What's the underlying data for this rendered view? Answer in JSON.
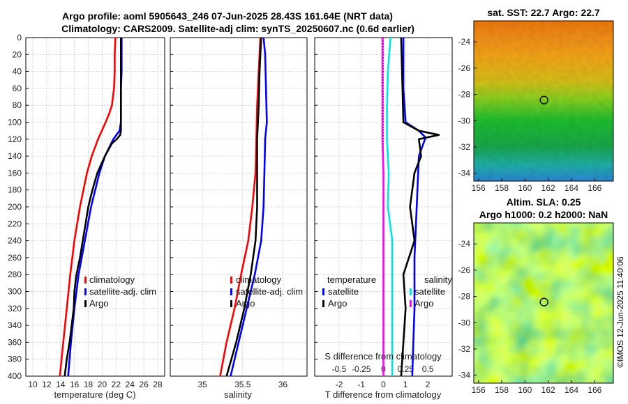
{
  "title_line1": "Argo profile: aoml 5905643_246 07-Jun-2025 28.43S 161.64E (NRT data)",
  "title_line2": "Climatology: CARS2009. Satellite-adj clim: synTS_20250607.nc (0.6d earlier)",
  "watermark": "©IMOS 12-Jun-2025 11:40:06",
  "colors": {
    "red": "#ff0000",
    "blue": "#0000ff",
    "black": "#000000",
    "cyan": "#00e5e5",
    "magenta": "#ff00ff"
  },
  "chart_data": [
    {
      "type": "line",
      "title": "",
      "xlabel": "temperature (deg C)",
      "ylabel": "",
      "xlim": [
        9,
        29
      ],
      "ylim": [
        400,
        0
      ],
      "xticks": [
        "10",
        "12",
        "14",
        "16",
        "18",
        "20",
        "22",
        "24",
        "26",
        "28"
      ],
      "yticks": [
        "0",
        "20",
        "40",
        "60",
        "80",
        "100",
        "120",
        "140",
        "160",
        "180",
        "200",
        "220",
        "240",
        "260",
        "280",
        "300",
        "320",
        "340",
        "360",
        "380",
        "400"
      ],
      "legend": [
        "climatology",
        "satellite-adj. clim",
        "Argo"
      ],
      "series": [
        {
          "name": "climatology",
          "color": "red",
          "depth": [
            0,
            20,
            40,
            60,
            80,
            90,
            100,
            120,
            140,
            160,
            200,
            240,
            280,
            320,
            360,
            400
          ],
          "values": [
            21.9,
            21.8,
            21.8,
            21.7,
            21.4,
            21.0,
            20.5,
            19.4,
            18.5,
            17.8,
            16.8,
            16.0,
            15.4,
            14.9,
            14.4,
            13.9
          ]
        },
        {
          "name": "satellite-adj. clim",
          "color": "blue",
          "depth": [
            0,
            20,
            40,
            60,
            80,
            100,
            110,
            120,
            140,
            160,
            200,
            240,
            280,
            320,
            360,
            400
          ],
          "values": [
            22.8,
            22.8,
            22.8,
            22.7,
            22.7,
            22.7,
            22.5,
            21.6,
            20.4,
            19.6,
            18.4,
            17.5,
            16.6,
            16.0,
            15.5,
            15.1
          ]
        },
        {
          "name": "Argo",
          "color": "black",
          "depth": [
            0,
            60,
            100,
            110,
            115,
            120,
            125,
            140,
            160,
            180,
            200,
            220,
            240,
            260,
            280,
            300,
            320,
            340,
            360,
            380,
            400
          ],
          "values": [
            22.7,
            22.7,
            22.7,
            22.7,
            22.6,
            22.1,
            21.4,
            20.4,
            19.3,
            18.6,
            18.0,
            17.6,
            17.2,
            16.8,
            16.3,
            16.0,
            15.9,
            15.6,
            15.3,
            14.9,
            14.6
          ]
        }
      ]
    },
    {
      "type": "line",
      "xlabel": "salinity",
      "xlim": [
        34.6,
        36.3
      ],
      "ylim": [
        400,
        0
      ],
      "xticks": [
        "35",
        "35.5",
        "36"
      ],
      "legend": [
        "climatology",
        "satellite-adj. clim",
        "Argo"
      ],
      "series": [
        {
          "name": "climatology",
          "color": "red",
          "depth": [
            0,
            40,
            80,
            120,
            160,
            200,
            240,
            280,
            320,
            360,
            400
          ],
          "values": [
            35.72,
            35.7,
            35.68,
            35.67,
            35.66,
            35.62,
            35.57,
            35.48,
            35.4,
            35.3,
            35.22
          ]
        },
        {
          "name": "satellite-adj. clim",
          "color": "blue",
          "depth": [
            0,
            20,
            60,
            100,
            120,
            160,
            200,
            240,
            280,
            320,
            360,
            400
          ],
          "values": [
            35.76,
            35.78,
            35.79,
            35.8,
            35.78,
            35.77,
            35.76,
            35.73,
            35.65,
            35.55,
            35.45,
            35.35
          ]
        },
        {
          "name": "Argo",
          "color": "black",
          "depth": [
            0,
            40,
            80,
            120,
            160,
            200,
            240,
            280,
            320,
            360,
            400
          ],
          "values": [
            35.73,
            35.71,
            35.7,
            35.68,
            35.68,
            35.68,
            35.66,
            35.6,
            35.52,
            35.42,
            35.3
          ]
        }
      ]
    },
    {
      "type": "line",
      "xlabel": "T difference from climatology",
      "xlabel_top": "S difference from climatology",
      "xlim": [
        -3.1,
        3.1
      ],
      "ylim": [
        400,
        0
      ],
      "xticks": [
        "-2",
        "-1",
        "0",
        "1",
        "2"
      ],
      "xticks_top": [
        "-0.5",
        "-0.25",
        "0",
        "0.25",
        "0.5"
      ],
      "legend_left": {
        "header": "temperature",
        "items": [
          "satellite",
          "Argo"
        ]
      },
      "legend_right": {
        "header": "salinity",
        "items": [
          "satellite",
          "Argo"
        ]
      },
      "series": [
        {
          "name": "T satellite",
          "color": "blue",
          "depth": [
            0,
            20,
            60,
            100,
            110,
            118,
            140,
            200,
            260,
            320,
            400
          ],
          "values": [
            0.9,
            0.9,
            0.9,
            1.0,
            1.6,
            1.9,
            1.6,
            1.5,
            1.4,
            1.4,
            1.3
          ]
        },
        {
          "name": "T Argo",
          "color": "black",
          "depth": [
            0,
            100,
            110,
            115,
            120,
            140,
            160,
            200,
            240,
            280,
            320,
            360,
            400
          ],
          "values": [
            0.8,
            0.9,
            1.6,
            2.5,
            1.6,
            1.7,
            1.4,
            1.2,
            1.4,
            0.9,
            1.0,
            0.9,
            0.8
          ]
        },
        {
          "name": "S satellite",
          "color": "cyan",
          "depth": [
            0,
            40,
            80,
            120,
            160,
            200,
            240,
            280,
            320,
            360,
            400
          ],
          "values": [
            0.08,
            0.05,
            0.04,
            0.04,
            0.06,
            0.05,
            0.1,
            0.1,
            0.1,
            0.1,
            0.1
          ]
        },
        {
          "name": "S Argo",
          "color": "magenta",
          "depth": [
            0,
            40,
            80,
            120,
            160,
            200,
            240,
            280,
            320,
            360,
            400
          ],
          "values": [
            -0.01,
            -0.01,
            -0.01,
            -0.01,
            0.0,
            0.0,
            0.0,
            0.0,
            0.0,
            0.0,
            0.0
          ]
        }
      ]
    }
  ],
  "maps": [
    {
      "title": "sat. SST: 22.7 Argo: 22.7",
      "xticks": [
        "156",
        "158",
        "160",
        "162",
        "164",
        "166"
      ],
      "yticks": [
        "-24",
        "-26",
        "-28",
        "-30",
        "-32",
        "-34"
      ],
      "marker": {
        "lon": 161.64,
        "lat": -28.43
      }
    },
    {
      "title_line1": "Altim. SLA: 0.25",
      "title_line2": "Argo h1000: 0.2 h2000: NaN",
      "xticks": [
        "156",
        "158",
        "160",
        "162",
        "164",
        "166"
      ],
      "yticks": [
        "-24",
        "-26",
        "-28",
        "-30",
        "-32",
        "-34"
      ],
      "marker": {
        "lon": 161.64,
        "lat": -28.43
      }
    }
  ]
}
